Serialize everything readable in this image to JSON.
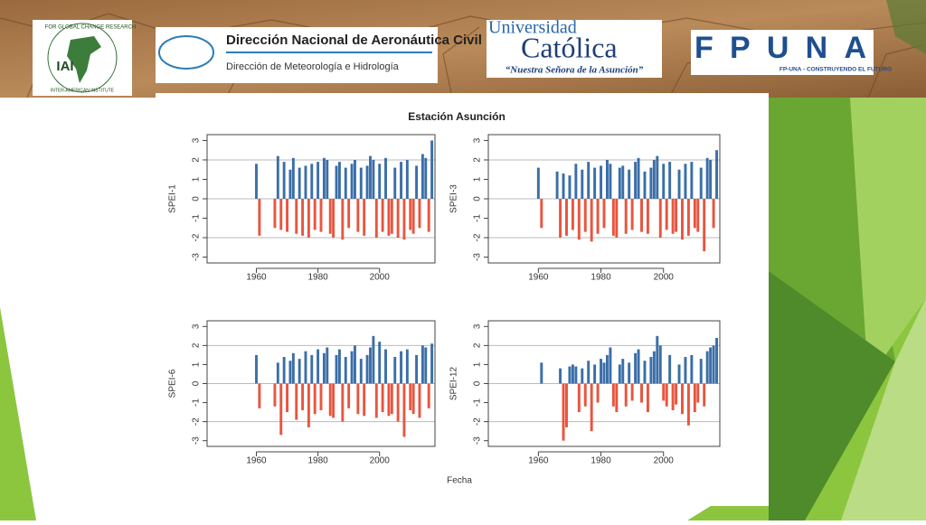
{
  "header": {
    "iai_logo": {
      "acronym": "IAI",
      "ring_top": "FOR GLOBAL CHANGE RESEARCH",
      "ring_bottom": "INTER-AMERICAN INSTITUTE"
    },
    "dinac_logo": {
      "title": "Dirección Nacional de Aeronáutica Civil",
      "subtitle": "Dirección de Meteorología e Hidrología"
    },
    "uc_logo": {
      "line1": "Universidad",
      "line2": "Católica",
      "motto": "“Nuestra Señora de la Asunción”"
    },
    "fpuna_logo": {
      "name": "FPUNA",
      "tagline": "FP-UNA - CONSTRUYENDO EL FUTURO"
    }
  },
  "figure": {
    "title": "Estación Asunción",
    "xlabel": "Fecha"
  },
  "chart_data": [
    {
      "type": "bar",
      "ylabel": "SPEI-1",
      "positive_color": "#3b6ea8",
      "negative_color": "#e8553f",
      "x": [
        1960,
        1961,
        1962,
        1963,
        1964,
        1965,
        1966,
        1967,
        1968,
        1969,
        1970,
        1971,
        1972,
        1973,
        1974,
        1975,
        1976,
        1977,
        1978,
        1979,
        1980,
        1981,
        1982,
        1983,
        1984,
        1985,
        1986,
        1987,
        1988,
        1989,
        1990,
        1991,
        1992,
        1993,
        1994,
        1995,
        1996,
        1997,
        1998,
        1999,
        2000,
        2001,
        2002,
        2003,
        2004,
        2005,
        2006,
        2007,
        2008,
        2009,
        2010,
        2011,
        2012,
        2013,
        2014,
        2015,
        2016,
        2017
      ],
      "values": [
        1.8,
        -1.9,
        null,
        null,
        null,
        null,
        -1.5,
        2.2,
        -1.6,
        1.9,
        -1.7,
        1.5,
        2.1,
        -1.8,
        1.6,
        -1.9,
        1.7,
        -2.0,
        1.8,
        -1.6,
        1.9,
        -1.7,
        2.1,
        2.0,
        -1.8,
        -2.0,
        1.7,
        1.9,
        -2.1,
        1.6,
        -1.5,
        1.8,
        2.0,
        -1.7,
        1.6,
        -1.9,
        1.7,
        2.2,
        2.0,
        -2.0,
        1.8,
        -1.7,
        2.1,
        -1.9,
        -1.8,
        1.6,
        -2.0,
        1.9,
        -2.1,
        2.0,
        -1.6,
        -1.8,
        1.7,
        -1.5,
        2.3,
        2.1,
        -1.7,
        3.0
      ],
      "xlim": [
        1944,
        2018
      ],
      "xticks": [
        1960,
        1980,
        2000
      ],
      "ylim": [
        -3.3,
        3.3
      ],
      "yticks": [
        -3,
        -2,
        -1,
        0,
        1,
        2,
        3
      ],
      "reference_lines": [
        -2,
        0,
        2
      ]
    },
    {
      "type": "bar",
      "ylabel": "SPEI-3",
      "positive_color": "#3b6ea8",
      "negative_color": "#e8553f",
      "x": [
        1960,
        1961,
        1962,
        1963,
        1964,
        1965,
        1966,
        1967,
        1968,
        1969,
        1970,
        1971,
        1972,
        1973,
        1974,
        1975,
        1976,
        1977,
        1978,
        1979,
        1980,
        1981,
        1982,
        1983,
        1984,
        1985,
        1986,
        1987,
        1988,
        1989,
        1990,
        1991,
        1992,
        1993,
        1994,
        1995,
        1996,
        1997,
        1998,
        1999,
        2000,
        2001,
        2002,
        2003,
        2004,
        2005,
        2006,
        2007,
        2008,
        2009,
        2010,
        2011,
        2012,
        2013,
        2014,
        2015,
        2016,
        2017
      ],
      "values": [
        1.6,
        -1.5,
        null,
        null,
        null,
        null,
        1.4,
        -2.0,
        1.3,
        -1.9,
        1.2,
        -1.6,
        1.8,
        -2.1,
        1.5,
        -1.7,
        1.9,
        -2.2,
        1.6,
        -1.8,
        1.7,
        -1.5,
        2.0,
        1.8,
        -1.9,
        -2.0,
        1.6,
        1.7,
        -1.8,
        1.5,
        -1.6,
        1.9,
        2.1,
        -1.7,
        1.4,
        -1.8,
        1.6,
        2.0,
        2.2,
        -2.0,
        1.8,
        -1.6,
        1.9,
        -1.8,
        -1.7,
        1.5,
        -2.1,
        1.8,
        -1.9,
        1.9,
        -1.5,
        -1.7,
        1.6,
        -2.7,
        2.1,
        2.0,
        -1.5,
        2.5
      ],
      "xlim": [
        1944,
        2018
      ],
      "xticks": [
        1960,
        1980,
        2000
      ],
      "ylim": [
        -3.3,
        3.3
      ],
      "yticks": [
        -3,
        -2,
        -1,
        0,
        1,
        2,
        3
      ],
      "reference_lines": [
        -2,
        0,
        2
      ]
    },
    {
      "type": "bar",
      "ylabel": "SPEI-6",
      "positive_color": "#3b6ea8",
      "negative_color": "#e8553f",
      "x": [
        1960,
        1961,
        1962,
        1963,
        1964,
        1965,
        1966,
        1967,
        1968,
        1969,
        1970,
        1971,
        1972,
        1973,
        1974,
        1975,
        1976,
        1977,
        1978,
        1979,
        1980,
        1981,
        1982,
        1983,
        1984,
        1985,
        1986,
        1987,
        1988,
        1989,
        1990,
        1991,
        1992,
        1993,
        1994,
        1995,
        1996,
        1997,
        1998,
        1999,
        2000,
        2001,
        2002,
        2003,
        2004,
        2005,
        2006,
        2007,
        2008,
        2009,
        2010,
        2011,
        2012,
        2013,
        2014,
        2015,
        2016,
        2017
      ],
      "values": [
        1.5,
        -1.3,
        null,
        null,
        null,
        null,
        -1.2,
        1.1,
        -2.7,
        1.4,
        -1.5,
        1.2,
        1.6,
        -1.9,
        1.3,
        -1.4,
        1.7,
        -2.3,
        1.5,
        -1.6,
        1.8,
        -1.4,
        1.6,
        1.9,
        -1.7,
        -1.8,
        1.5,
        1.8,
        -2.0,
        1.4,
        -1.3,
        1.7,
        2.0,
        -1.6,
        1.3,
        -1.7,
        1.5,
        1.9,
        2.5,
        -1.8,
        2.2,
        -1.5,
        1.8,
        -1.7,
        -1.6,
        1.4,
        -2.0,
        1.7,
        -2.8,
        1.8,
        -1.4,
        -1.6,
        1.5,
        -1.8,
        2.0,
        1.9,
        -1.3,
        2.1
      ],
      "xlim": [
        1944,
        2018
      ],
      "xticks": [
        1960,
        1980,
        2000
      ],
      "ylim": [
        -3.3,
        3.3
      ],
      "yticks": [
        -3,
        -2,
        -1,
        0,
        1,
        2,
        3
      ],
      "reference_lines": [
        -2,
        0,
        2
      ]
    },
    {
      "type": "bar",
      "ylabel": "SPEI-12",
      "positive_color": "#3b6ea8",
      "negative_color": "#e8553f",
      "x": [
        1960,
        1961,
        1962,
        1963,
        1964,
        1965,
        1966,
        1967,
        1968,
        1969,
        1970,
        1971,
        1972,
        1973,
        1974,
        1975,
        1976,
        1977,
        1978,
        1979,
        1980,
        1981,
        1982,
        1983,
        1984,
        1985,
        1986,
        1987,
        1988,
        1989,
        1990,
        1991,
        1992,
        1993,
        1994,
        1995,
        1996,
        1997,
        1998,
        1999,
        2000,
        2001,
        2002,
        2003,
        2004,
        2005,
        2006,
        2007,
        2008,
        2009,
        2010,
        2011,
        2012,
        2013,
        2014,
        2015,
        2016,
        2017
      ],
      "values": [
        null,
        1.1,
        null,
        null,
        null,
        null,
        null,
        0.8,
        -3.0,
        -2.3,
        0.9,
        1.0,
        0.9,
        -1.5,
        0.8,
        -1.2,
        1.2,
        -2.5,
        1.0,
        -1.0,
        1.3,
        1.1,
        1.5,
        1.9,
        -1.2,
        -1.5,
        1.0,
        1.3,
        -1.2,
        1.1,
        -0.9,
        1.6,
        1.8,
        -1.0,
        1.2,
        -1.5,
        1.4,
        1.7,
        2.5,
        2.0,
        -0.9,
        -1.2,
        1.5,
        -1.4,
        -1.1,
        1.0,
        -1.6,
        1.4,
        -2.2,
        1.5,
        -1.5,
        -1.0,
        1.3,
        -1.2,
        1.7,
        1.9,
        2.0,
        2.4
      ],
      "xlim": [
        1944,
        2018
      ],
      "xticks": [
        1960,
        1980,
        2000
      ],
      "ylim": [
        -3.3,
        3.3
      ],
      "yticks": [
        -3,
        -2,
        -1,
        0,
        1,
        2,
        3
      ],
      "reference_lines": [
        -2,
        0,
        2
      ]
    }
  ]
}
